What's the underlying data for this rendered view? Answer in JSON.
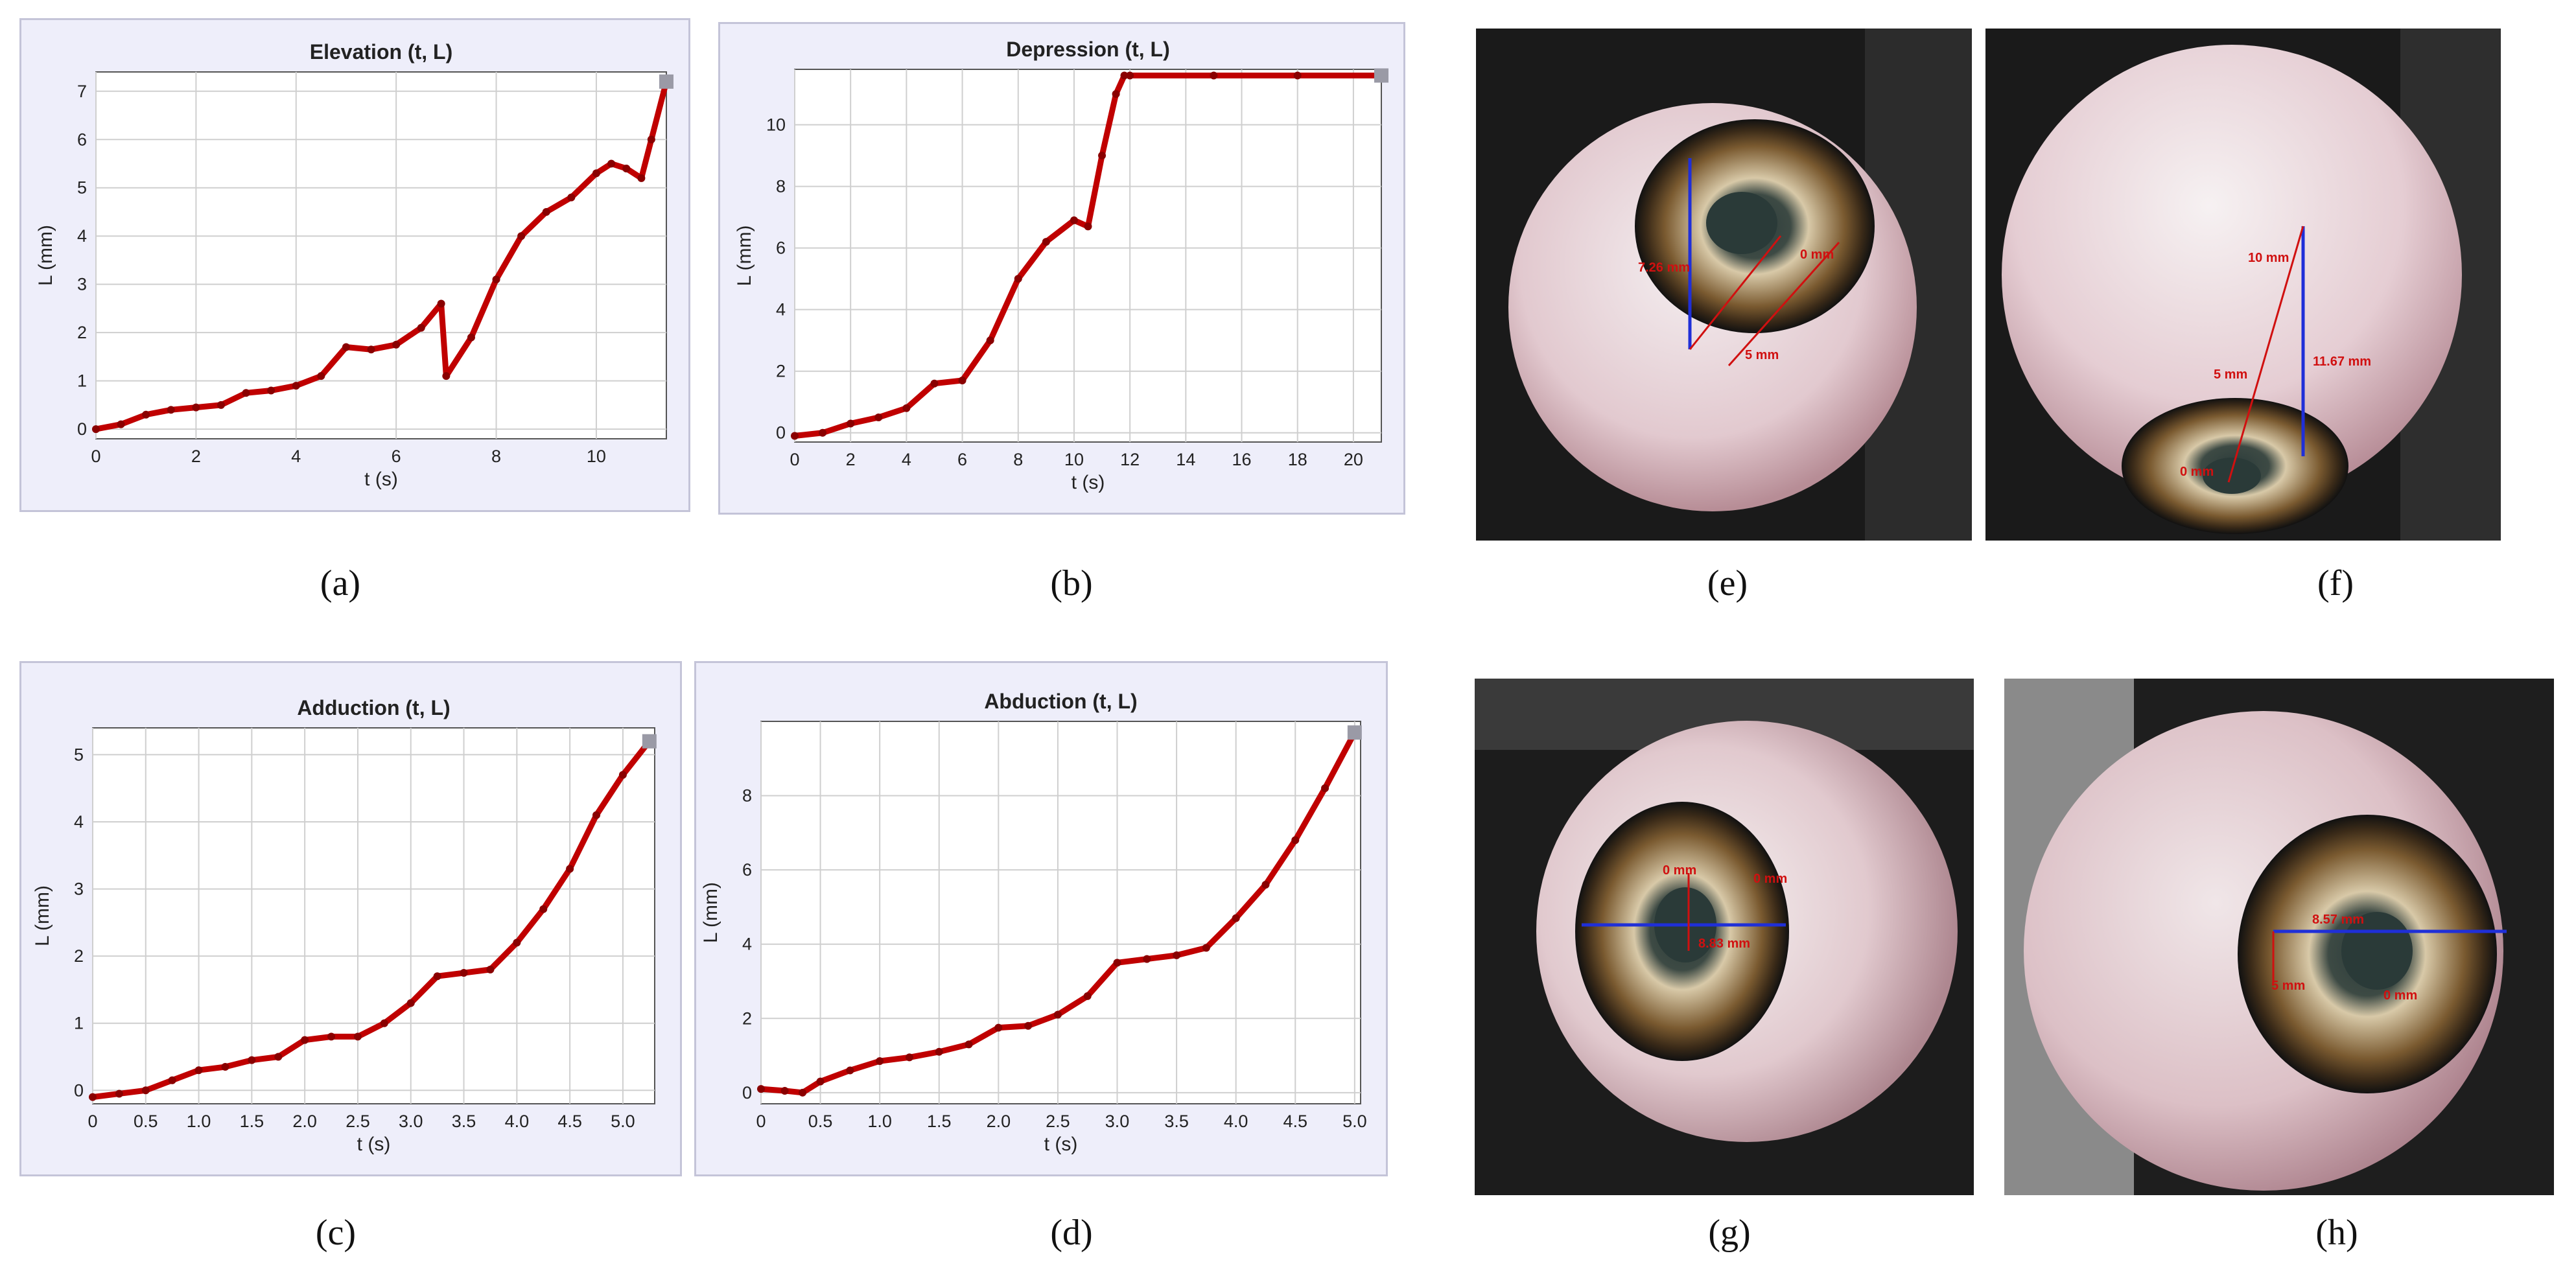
{
  "figure": {
    "captions": [
      "(a)",
      "(b)",
      "(c)",
      "(d)",
      "(e)",
      "(f)",
      "(g)",
      "(h)"
    ],
    "photo_annotations": {
      "e": [
        "7.26 mm",
        "0 mm",
        "5 mm"
      ],
      "f": [
        "10 mm",
        "5 mm",
        "11.67 mm",
        "0 mm"
      ],
      "g": [
        "0 mm",
        "0 mm",
        "8.83 mm"
      ],
      "h": [
        "8.57 mm",
        "5 mm",
        "0 mm"
      ]
    }
  },
  "chart_data": [
    {
      "id": "a",
      "type": "line",
      "title": "Elevation (t, L)",
      "xlabel": "t (s)",
      "ylabel": "L (mm)",
      "xlim": [
        0,
        11.4
      ],
      "ylim": [
        -0.2,
        7.4
      ],
      "xticks": [
        0,
        2,
        4,
        6,
        8,
        10
      ],
      "yticks": [
        0,
        1,
        2,
        3,
        4,
        5,
        6,
        7
      ],
      "grid": true,
      "color": "#c00000",
      "x": [
        0,
        0.5,
        1,
        1.5,
        2,
        2.5,
        3,
        3.5,
        4,
        4.5,
        5,
        5.5,
        6,
        6.5,
        6.9,
        7.0,
        7.5,
        8,
        8.5,
        9,
        9.5,
        10,
        10.3,
        10.6,
        10.9,
        11.1,
        11.4
      ],
      "y": [
        0,
        0.1,
        0.3,
        0.4,
        0.45,
        0.5,
        0.75,
        0.8,
        0.9,
        1.1,
        1.7,
        1.65,
        1.75,
        2.1,
        2.6,
        1.1,
        1.9,
        3.1,
        4.0,
        4.5,
        4.8,
        5.3,
        5.5,
        5.4,
        5.2,
        6.0,
        7.2
      ]
    },
    {
      "id": "b",
      "type": "line",
      "title": "Depression (t, L)",
      "xlabel": "t (s)",
      "ylabel": "L (mm)",
      "xlim": [
        0,
        21
      ],
      "ylim": [
        -0.3,
        11.8
      ],
      "xticks": [
        0,
        2,
        4,
        6,
        8,
        10,
        12,
        14,
        16,
        18,
        20
      ],
      "yticks": [
        0,
        2,
        4,
        6,
        8,
        10
      ],
      "grid": true,
      "color": "#c00000",
      "x": [
        0,
        1,
        2,
        3,
        4,
        5,
        6,
        7,
        8,
        9,
        10,
        10.5,
        11,
        11.5,
        11.8,
        12,
        15,
        18,
        21
      ],
      "y": [
        -0.1,
        0,
        0.3,
        0.5,
        0.8,
        1.6,
        1.7,
        3.0,
        5.0,
        6.2,
        6.9,
        6.7,
        9.0,
        11.0,
        11.6,
        11.6,
        11.6,
        11.6,
        11.6
      ]
    },
    {
      "id": "c",
      "type": "line",
      "title": "Adduction (t, L)",
      "xlabel": "t (s)",
      "ylabel": "L (mm)",
      "xlim": [
        0,
        5.3
      ],
      "ylim": [
        -0.2,
        5.4
      ],
      "xticks": [
        0,
        0.5,
        1.0,
        1.5,
        2.0,
        2.5,
        3.0,
        3.5,
        4.0,
        4.5,
        5.0
      ],
      "yticks": [
        0,
        1,
        2,
        3,
        4,
        5
      ],
      "xticklabels": [
        "0",
        "0.5",
        "1.0",
        "1.5",
        "2.0",
        "2.5",
        "3.0",
        "3.5",
        "4.0",
        "4.5",
        "5.0"
      ],
      "grid": true,
      "color": "#c00000",
      "x": [
        0,
        0.25,
        0.5,
        0.75,
        1.0,
        1.25,
        1.5,
        1.75,
        2.0,
        2.25,
        2.5,
        2.75,
        3.0,
        3.25,
        3.5,
        3.75,
        4.0,
        4.25,
        4.5,
        4.75,
        5.0,
        5.25
      ],
      "y": [
        -0.1,
        -0.05,
        0,
        0.15,
        0.3,
        0.35,
        0.45,
        0.5,
        0.75,
        0.8,
        0.8,
        1.0,
        1.3,
        1.7,
        1.75,
        1.8,
        2.2,
        2.7,
        3.3,
        4.1,
        4.7,
        5.2
      ]
    },
    {
      "id": "d",
      "type": "line",
      "title": "Abduction (t, L)",
      "xlabel": "t (s)",
      "ylabel": "L (mm)",
      "xlim": [
        0,
        5.05
      ],
      "ylim": [
        -0.3,
        10.0
      ],
      "xticks": [
        0,
        0.5,
        1.0,
        1.5,
        2.0,
        2.5,
        3.0,
        3.5,
        4.0,
        4.5,
        5.0
      ],
      "yticks": [
        0,
        2,
        4,
        6,
        8
      ],
      "xticklabels": [
        "0",
        "0.5",
        "1.0",
        "1.5",
        "2.0",
        "2.5",
        "3.0",
        "3.5",
        "4.0",
        "4.5",
        "5.0"
      ],
      "grid": true,
      "color": "#c00000",
      "x": [
        0,
        0.2,
        0.35,
        0.5,
        0.75,
        1.0,
        1.25,
        1.5,
        1.75,
        2.0,
        2.25,
        2.5,
        2.75,
        3.0,
        3.25,
        3.5,
        3.75,
        4.0,
        4.25,
        4.5,
        4.75,
        5.0
      ],
      "y": [
        0.1,
        0.05,
        0,
        0.3,
        0.6,
        0.85,
        0.95,
        1.1,
        1.3,
        1.75,
        1.8,
        2.1,
        2.6,
        3.5,
        3.6,
        3.7,
        3.9,
        4.7,
        5.6,
        6.8,
        8.2,
        9.7
      ]
    }
  ]
}
